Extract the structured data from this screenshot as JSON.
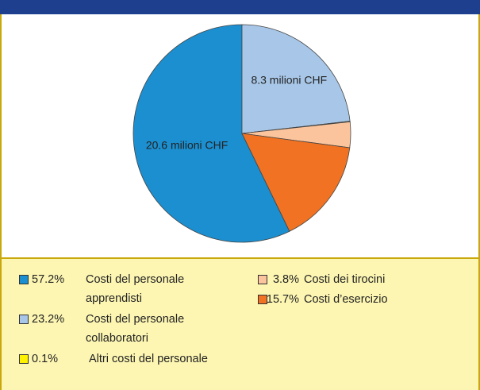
{
  "chart_data": {
    "type": "pie",
    "categories": [
      "Costi del personale apprendisti",
      "Costi del personale collaboratori",
      "Altri costi del personale",
      "Costi dei tirocini",
      "Costi d’esercizio"
    ],
    "values": [
      57.2,
      23.2,
      0.1,
      3.8,
      15.7
    ],
    "value_labels": [
      "57.2%",
      "23.2%",
      "0.1%",
      "3.8%",
      "15.7%"
    ],
    "colors": [
      "#1b8fd0",
      "#a8c7e8",
      "#fff200",
      "#fbc49c",
      "#f07222"
    ],
    "slice_labels": [
      "20.6 milioni CHF",
      "8.3 milioni CHF",
      null,
      null,
      null
    ]
  }
}
